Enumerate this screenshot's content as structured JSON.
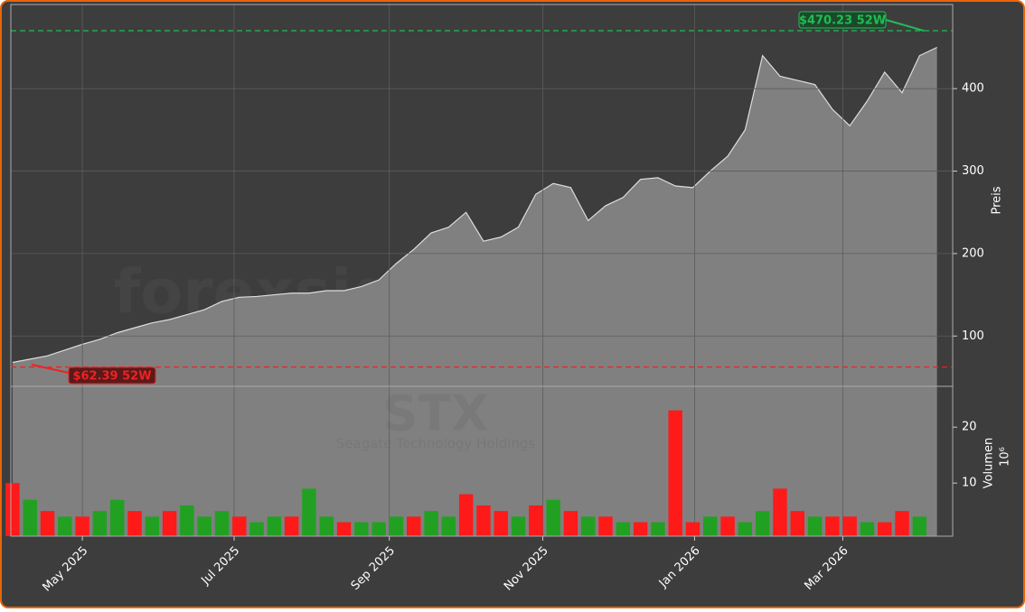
{
  "chart_data": [
    {
      "type": "area",
      "watermark": "forexsignale.trade",
      "symbol": "STX",
      "subtitle": "Seagate Technology Holdings",
      "y_label": "Preis",
      "color": "#808080",
      "grid": true,
      "x": [
        0,
        1,
        2,
        3,
        4,
        5,
        6,
        7,
        8,
        9,
        10,
        11,
        12,
        13,
        14,
        15,
        16,
        17,
        18,
        19,
        20,
        21,
        22,
        23,
        24,
        25,
        26,
        27,
        28,
        29,
        30,
        31,
        32,
        33,
        34,
        35,
        36,
        37,
        38,
        39,
        40,
        41,
        42,
        43,
        44,
        45,
        46,
        47,
        48,
        49,
        50,
        51,
        52,
        53
      ],
      "values": [
        68,
        72,
        76,
        83,
        90,
        96,
        104,
        110,
        116,
        120,
        126,
        132,
        142,
        147,
        148,
        150,
        152,
        152,
        155,
        155,
        160,
        168,
        188,
        205,
        225,
        232,
        250,
        215,
        220,
        232,
        272,
        285,
        280,
        240,
        258,
        268,
        290,
        292,
        282,
        280,
        300,
        318,
        350,
        440,
        415,
        410,
        405,
        375,
        355,
        385,
        420,
        395,
        440,
        450
      ],
      "xlim": [
        -0.1,
        53.9
      ],
      "ylim": [
        39,
        502
      ],
      "yticks": [
        100,
        200,
        300,
        400
      ],
      "xticks": [
        {
          "value": 4,
          "label": "May 2025"
        },
        {
          "value": 12.7,
          "label": "Jul 2025"
        },
        {
          "value": 21.6,
          "label": "Sep 2025"
        },
        {
          "value": 30.4,
          "label": "Nov 2025"
        },
        {
          "value": 39.1,
          "label": "Jan 2026"
        },
        {
          "value": 47.6,
          "label": "Mar 2026"
        }
      ],
      "annotations": [
        {
          "label": "$470.23 52W",
          "value": 470.23,
          "color": "#22bb55"
        },
        {
          "label": "$62.39 52W",
          "value": 62.39,
          "color": "#ee2222"
        }
      ]
    },
    {
      "type": "bar",
      "y_label": "Volumen",
      "y_unit": "10⁶",
      "x": [
        0,
        1,
        2,
        3,
        4,
        5,
        6,
        7,
        8,
        9,
        10,
        11,
        12,
        13,
        14,
        15,
        16,
        17,
        18,
        19,
        20,
        21,
        22,
        23,
        24,
        25,
        26,
        27,
        28,
        29,
        30,
        31,
        32,
        33,
        34,
        35,
        36,
        37,
        38,
        39,
        40,
        41,
        42,
        43,
        44,
        45,
        46,
        47,
        48,
        49,
        50,
        51,
        52
      ],
      "values": [
        10,
        7,
        5,
        4,
        4,
        5,
        7,
        5,
        4,
        5,
        6,
        4,
        5,
        4,
        3,
        4,
        4,
        9,
        4,
        3,
        3,
        3,
        4,
        4,
        5,
        4,
        8,
        6,
        5,
        4,
        6,
        7,
        5,
        4,
        4,
        3,
        3,
        3,
        23,
        3,
        4,
        4,
        3,
        5,
        9,
        5,
        4,
        4,
        4,
        3,
        3,
        5,
        4
      ],
      "colors": [
        "#ff1a1a",
        "#22a022",
        "#ff1a1a",
        "#22a022",
        "#ff1a1a",
        "#22a022",
        "#22a022",
        "#ff1a1a",
        "#22a022",
        "#ff1a1a",
        "#22a022",
        "#22a022",
        "#22a022",
        "#ff1a1a",
        "#22a022",
        "#22a022",
        "#ff1a1a",
        "#22a022",
        "#22a022",
        "#ff1a1a",
        "#22a022",
        "#22a022",
        "#22a022",
        "#ff1a1a",
        "#22a022",
        "#22a022",
        "#ff1a1a",
        "#ff1a1a",
        "#ff1a1a",
        "#22a022",
        "#ff1a1a",
        "#22a022",
        "#ff1a1a",
        "#22a022",
        "#ff1a1a",
        "#22a022",
        "#ff1a1a",
        "#22a022",
        "#ff1a1a",
        "#ff1a1a",
        "#22a022",
        "#ff1a1a",
        "#22a022",
        "#22a022",
        "#ff1a1a",
        "#ff1a1a",
        "#22a022",
        "#ff1a1a",
        "#ff1a1a",
        "#22a022",
        "#ff1a1a",
        "#ff1a1a",
        "#22a022"
      ],
      "ylim": [
        0.5,
        27.3
      ],
      "yticks": [
        10,
        20
      ]
    }
  ]
}
